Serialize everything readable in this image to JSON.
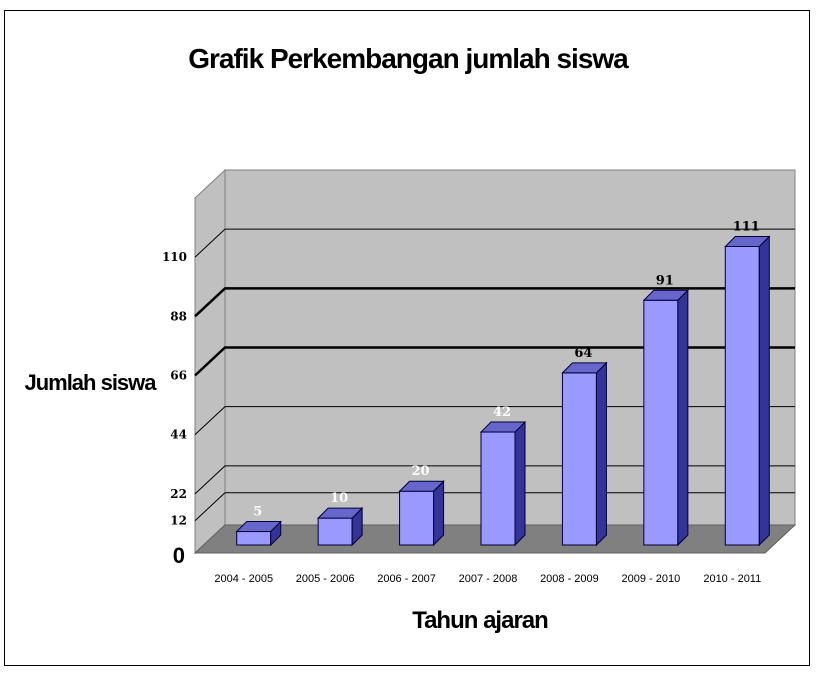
{
  "chart_data": {
    "type": "bar",
    "title": "Grafik Perkembangan jumlah siswa",
    "ylabel": "Jumlah siswa",
    "xlabel": "Tahun ajaran",
    "categories": [
      "2004 - 2005",
      "2005 - 2006",
      "2006 - 2007",
      "2007 - 2008",
      "2008 - 2009",
      "2009 - 2010",
      "2010 - 2011"
    ],
    "values": [
      5,
      10,
      20,
      42,
      64,
      91,
      111
    ],
    "data_labels": [
      "5",
      "10",
      "20",
      "42",
      "64",
      "91",
      "111"
    ],
    "yticks": [
      0,
      12,
      22,
      44,
      66,
      88,
      110
    ],
    "ytick_labels": [
      "0",
      "12",
      "22",
      "44",
      "66",
      "88",
      "110"
    ],
    "ylim": [
      0,
      132
    ],
    "grid": true,
    "legend": "none",
    "colors": {
      "bar_front": "#9999ff",
      "bar_side": "#333399",
      "bar_top": "#6666cc",
      "wall": "#c0c0c0",
      "floor": "#808080"
    }
  }
}
